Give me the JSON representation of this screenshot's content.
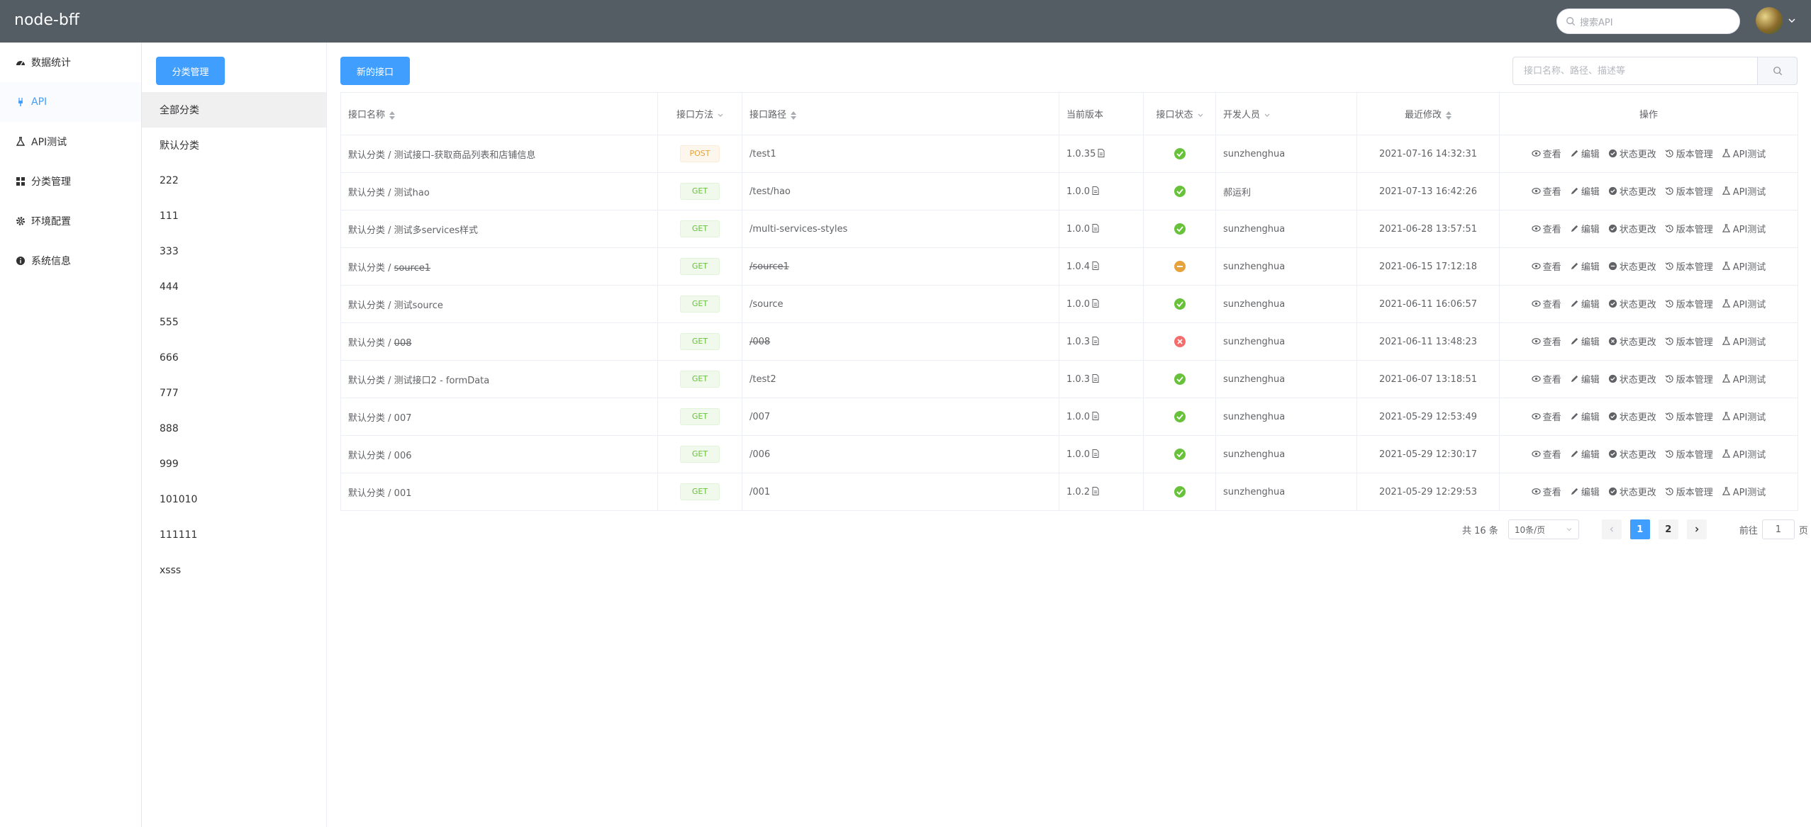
{
  "app": {
    "title": "node-bff"
  },
  "header": {
    "search_placeholder": "搜索API"
  },
  "sidebar": {
    "items": [
      {
        "label": "数据统计",
        "icon": "dashboard-icon"
      },
      {
        "label": "API",
        "icon": "plug-icon",
        "active": true
      },
      {
        "label": "API测试",
        "icon": "flask-icon"
      },
      {
        "label": "分类管理",
        "icon": "grid-icon"
      },
      {
        "label": "环境配置",
        "icon": "gear-icon"
      },
      {
        "label": "系统信息",
        "icon": "info-icon"
      }
    ]
  },
  "categories": {
    "manage_label": "分类管理",
    "items": [
      "全部分类",
      "默认分类",
      "222",
      "111",
      "333",
      "444",
      "555",
      "666",
      "777",
      "888",
      "999",
      "101010",
      "111111",
      "xsss"
    ],
    "active_index": 0
  },
  "toolbar": {
    "new_label": "新的接口",
    "search_placeholder": "接口名称、路径、描述等"
  },
  "table": {
    "headers": {
      "name": "接口名称",
      "method": "接口方法",
      "path": "接口路径",
      "version": "当前版本",
      "status": "接口状态",
      "developer": "开发人员",
      "modified": "最近修改",
      "ops": "操作"
    },
    "ops": {
      "view": "查看",
      "edit": "编辑",
      "status": "状态更改",
      "versions": "版本管理",
      "test": "API测试"
    },
    "rows": [
      {
        "category": "默认分类",
        "sep": " / ",
        "name": "测试接口-获取商品列表和店铺信息",
        "strike": false,
        "method": "POST",
        "path": "/test1",
        "version": "1.0.35",
        "status": "ok",
        "developer": "sunzhenghua",
        "modified": "2021-07-16 14:32:31"
      },
      {
        "category": "默认分类",
        "sep": " / ",
        "name": "测试hao",
        "strike": false,
        "method": "GET",
        "path": "/test/hao",
        "version": "1.0.0",
        "status": "ok",
        "developer": "郝运利",
        "modified": "2021-07-13 16:42:26"
      },
      {
        "category": "默认分类",
        "sep": " / ",
        "name": "测试多services样式",
        "strike": false,
        "method": "GET",
        "path": "/multi-services-styles",
        "version": "1.0.0",
        "status": "ok",
        "developer": "sunzhenghua",
        "modified": "2021-06-28 13:57:51"
      },
      {
        "category": "默认分类",
        "sep": " / ",
        "name": "source1",
        "strike": true,
        "method": "GET",
        "path": "/source1",
        "version": "1.0.4",
        "status": "deprecated",
        "developer": "sunzhenghua",
        "modified": "2021-06-15 17:12:18"
      },
      {
        "category": "默认分类",
        "sep": " / ",
        "name": "测试source",
        "strike": false,
        "method": "GET",
        "path": "/source",
        "version": "1.0.0",
        "status": "ok",
        "developer": "sunzhenghua",
        "modified": "2021-06-11 16:06:57"
      },
      {
        "category": "默认分类",
        "sep": " / ",
        "name": "008",
        "strike": true,
        "method": "GET",
        "path": "/008",
        "version": "1.0.3",
        "status": "offline",
        "developer": "sunzhenghua",
        "modified": "2021-06-11 13:48:23"
      },
      {
        "category": "默认分类",
        "sep": " / ",
        "name": "测试接口2 - formData",
        "strike": false,
        "method": "GET",
        "path": "/test2",
        "version": "1.0.3",
        "status": "ok",
        "developer": "sunzhenghua",
        "modified": "2021-06-07 13:18:51"
      },
      {
        "category": "默认分类",
        "sep": " / ",
        "name": "007",
        "strike": false,
        "method": "GET",
        "path": "/007",
        "version": "1.0.0",
        "status": "ok",
        "developer": "sunzhenghua",
        "modified": "2021-05-29 12:53:49"
      },
      {
        "category": "默认分类",
        "sep": " / ",
        "name": "006",
        "strike": false,
        "method": "GET",
        "path": "/006",
        "version": "1.0.0",
        "status": "ok",
        "developer": "sunzhenghua",
        "modified": "2021-05-29 12:30:17"
      },
      {
        "category": "默认分类",
        "sep": " / ",
        "name": "001",
        "strike": false,
        "method": "GET",
        "path": "/001",
        "version": "1.0.2",
        "status": "ok",
        "developer": "sunzhenghua",
        "modified": "2021-05-29 12:29:53"
      }
    ]
  },
  "pagination": {
    "total_text": "共 16 条",
    "page_size": "10条/页",
    "pages": [
      "1",
      "2"
    ],
    "current": "1",
    "goto_label": "前往",
    "goto_value": "1",
    "goto_suffix": "页"
  },
  "colors": {
    "primary": "#409eff",
    "header_bg": "#545c64",
    "success": "#67c23a",
    "warning": "#e6a23c",
    "danger": "#f56c6c"
  }
}
